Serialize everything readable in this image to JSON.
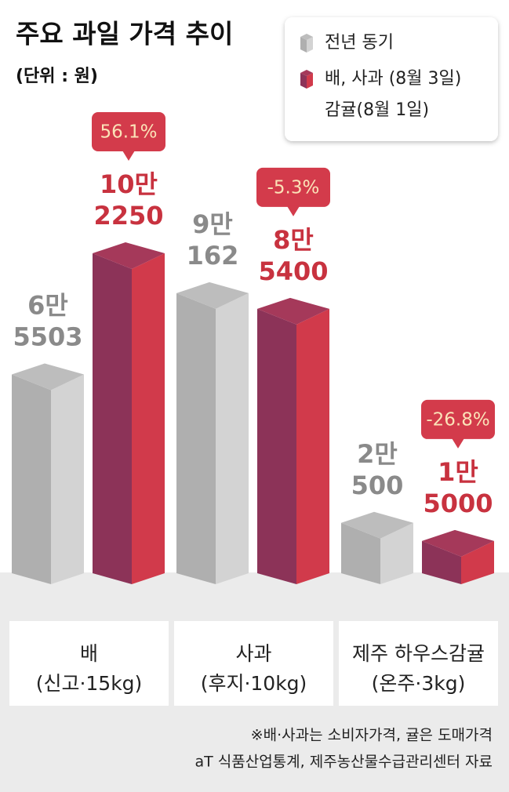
{
  "chart_data": {
    "type": "bar3d",
    "title": "주요 과일 가격 추이",
    "subtitle": "(단위 : 원)",
    "categories": [
      "배",
      "사과",
      "제주 하우스감귤"
    ],
    "category_notes": [
      "(신고·15kg)",
      "(후지·10kg)",
      "(온주·3kg)"
    ],
    "series": [
      {
        "name": [
          "전년 동기"
        ],
        "color": "#c4c4c4",
        "values": [
          65503,
          90162,
          20500
        ],
        "value_labels": [
          [
            "6만",
            "5503"
          ],
          [
            "9만",
            "162"
          ],
          [
            "2만",
            "500"
          ]
        ]
      },
      {
        "name": [
          "배, 사과 (8월 3일)",
          "감귤(8월 1일)"
        ],
        "color": "#c8323f",
        "values": [
          102250,
          85400,
          15000
        ],
        "value_labels": [
          [
            "10만",
            "2250"
          ],
          [
            "8만",
            "5400"
          ],
          [
            "1만",
            "5000"
          ]
        ]
      }
    ],
    "change": {
      "values": [
        56.1,
        -5.3,
        -26.8
      ],
      "value_labels": [
        "56.1%",
        "-5.3%",
        "-26.8%"
      ]
    },
    "notes": [
      "※배·사과는 소비자가격, 귤은 도매가격",
      "aT 식품산업통계, 제주농산물수급관리센터 자료"
    ]
  }
}
